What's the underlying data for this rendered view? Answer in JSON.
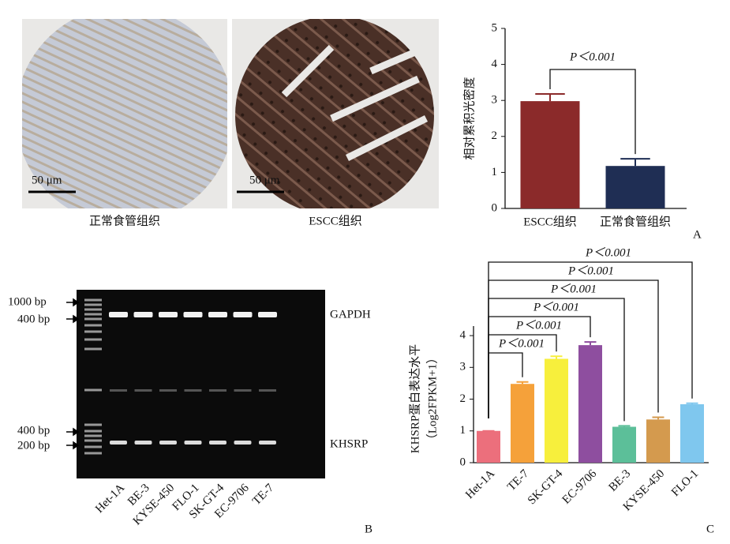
{
  "panel_labels": [
    "A",
    "B",
    "C"
  ],
  "tissue_images": {
    "scale_bar": "50 μm",
    "captions": [
      "正常食管组织",
      "ESCC组织"
    ]
  },
  "gel": {
    "marker_labels_top": [
      "1000 bp",
      "400 bp"
    ],
    "marker_labels_bottom": [
      "400 bp",
      "200 bp"
    ],
    "band_labels": [
      "GAPDH",
      "KHSRP"
    ],
    "lanes": [
      "Het-1A",
      "BE-3",
      "KYSE-450",
      "FLO-1",
      "SK-GT-4",
      "EC-9706",
      "TE-7"
    ]
  },
  "chart_data": [
    {
      "type": "bar",
      "ylabel": "相对累积光密度",
      "categories": [
        "ESCC组织",
        "正常食管组织"
      ],
      "values": [
        2.98,
        1.18
      ],
      "errors": [
        0.2,
        0.2
      ],
      "colors": [
        "#8b2a2a",
        "#1f2e54"
      ],
      "ylim": [
        0,
        5
      ],
      "yticks": [
        0,
        1,
        2,
        3,
        4,
        5
      ],
      "significance": [
        "P＜0.001"
      ]
    },
    {
      "type": "bar",
      "ylabel": [
        "KHSRP蛋白表达水平",
        "（Log2FPKM+1）"
      ],
      "categories": [
        "Het-1A",
        "TE-7",
        "SK-GT-4",
        "EC-9706",
        "BE-3",
        "KYSE-450",
        "FLO-1"
      ],
      "values": [
        1,
        2.48,
        3.27,
        3.7,
        1.13,
        1.36,
        1.84
      ],
      "errors": [
        0,
        0.06,
        0.08,
        0.1,
        0.03,
        0.07,
        0.03
      ],
      "colors": [
        "#ec6f7c",
        "#f5a13a",
        "#f7ef3c",
        "#8e4e9f",
        "#5cbf99",
        "#d49a4e",
        "#7fc7ee"
      ],
      "ylim": [
        0,
        4.3
      ],
      "yticks": [
        0,
        1,
        2,
        3,
        4
      ],
      "significance": [
        "P＜0.001",
        "P＜0.001",
        "P＜0.001",
        "P＜0.001",
        "P＜0.001",
        "P＜0.001"
      ]
    }
  ]
}
